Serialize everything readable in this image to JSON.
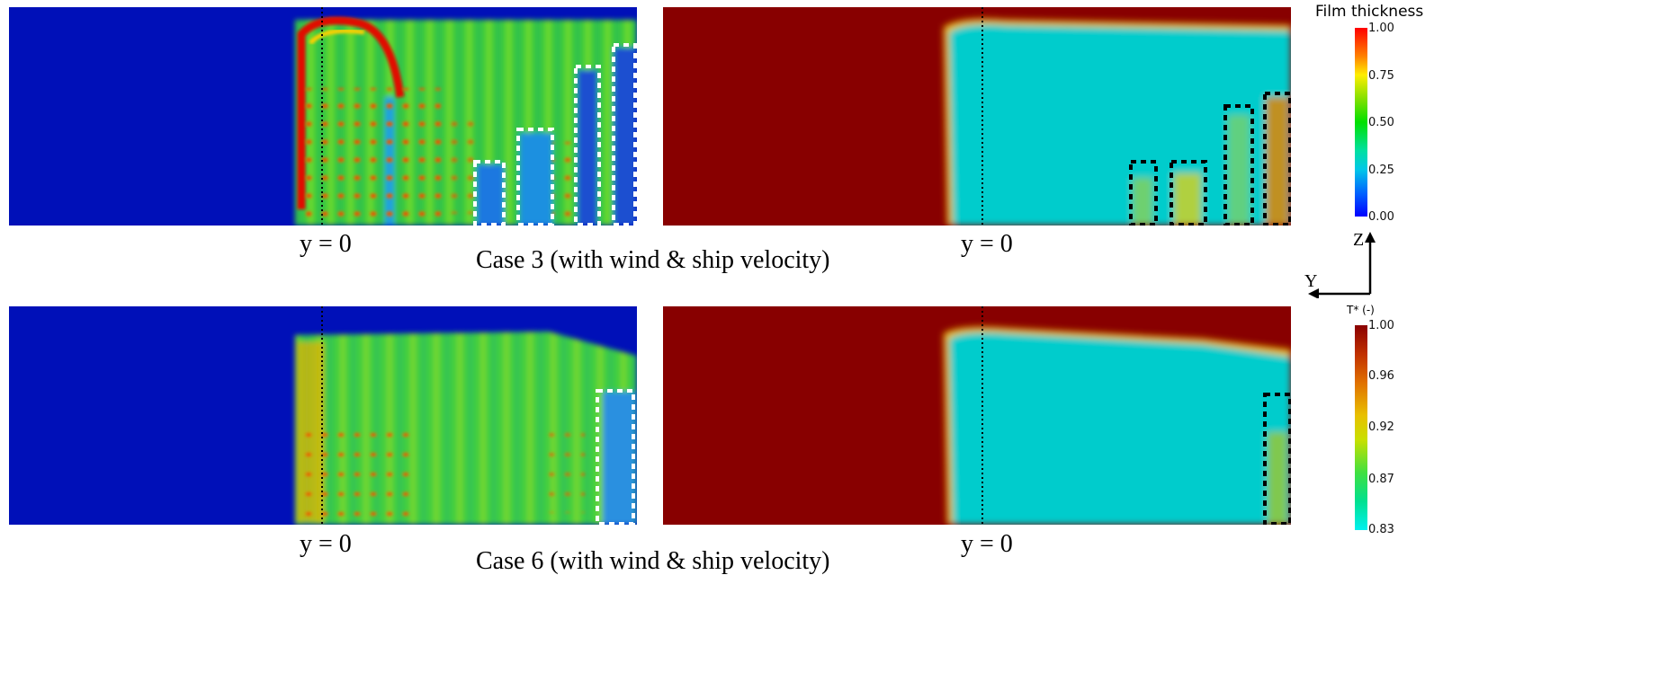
{
  "panels": {
    "top_left": {
      "y_label": "y = 0"
    },
    "top_right": {
      "y_label": "y = 0"
    },
    "bottom_left": {
      "y_label": "y = 0"
    },
    "bottom_right": {
      "y_label": "y = 0"
    }
  },
  "captions": {
    "case3": "Case 3 (with wind & ship velocity)",
    "case6": "Case 6 (with wind & ship velocity)"
  },
  "colorbars": {
    "film_thickness": {
      "title": "Film thickness",
      "ticks": [
        "1.00",
        "0.75",
        "0.50",
        "0.25",
        "0.00"
      ],
      "colors": [
        "#ff0000",
        "#ffee00",
        "#00e000",
        "#00c8e8",
        "#0000ff"
      ]
    },
    "temperature": {
      "title": "T* (-)",
      "ticks": [
        "1.00",
        "0.96",
        "0.92",
        "0.87",
        "0.83"
      ],
      "colors": [
        "#8a0000",
        "#e07000",
        "#e8e000",
        "#00e070",
        "#00f0f0"
      ]
    }
  },
  "axes": {
    "z": "Z",
    "y": "Y"
  },
  "colors": {
    "film_background": "#0010b8",
    "film_green": "#3cd23c",
    "temp_hot": "#880000",
    "temp_cold": "#00cccc"
  }
}
